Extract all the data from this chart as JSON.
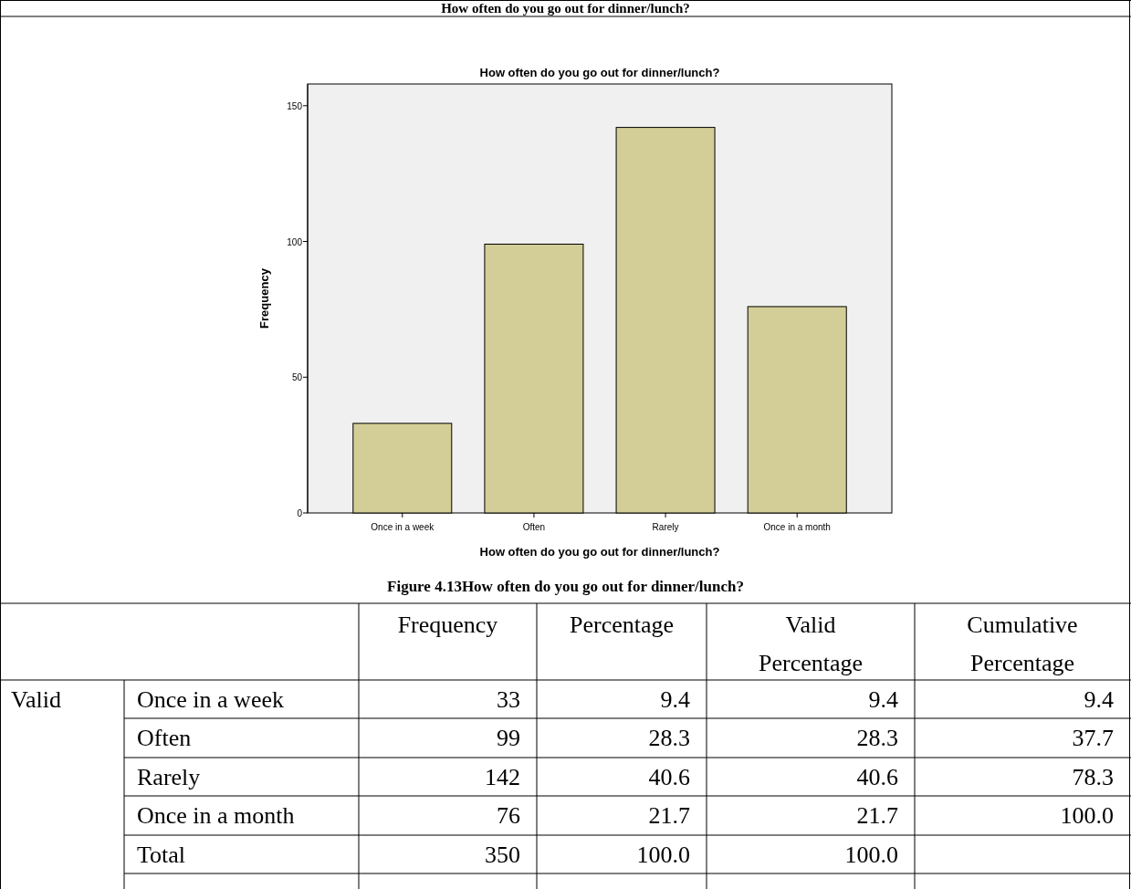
{
  "chart_data": {
    "type": "bar",
    "title": "How often do you go out for dinner/lunch?",
    "subtitle": "How often do you go out for dinner/lunch?",
    "xlabel": "How often do you go out for dinner/lunch?",
    "ylabel": "Frequency",
    "categories": [
      "Once in a week",
      "Often",
      "Rarely",
      "Once in a month"
    ],
    "values": [
      33,
      99,
      142,
      76
    ],
    "color": "#d3ce97",
    "ylim": [
      0,
      158
    ],
    "yticks": [
      0,
      50,
      100,
      150
    ],
    "annotations": [
      "Figure 4.13How often do you go out for dinner/lunch?",
      "Frequency",
      "Percentage",
      "Valid Percentage",
      "Cumulative Percentage",
      "Valid",
      "9.4",
      "9.4",
      "9.4",
      "28.3",
      "28.3",
      "37.7",
      "40.6",
      "40.6",
      "78.3",
      "21.7",
      "21.7",
      "100.0",
      "Total",
      "350",
      "100.0",
      "100.0",
      "33",
      "99",
      "142",
      "76"
    ]
  }
}
